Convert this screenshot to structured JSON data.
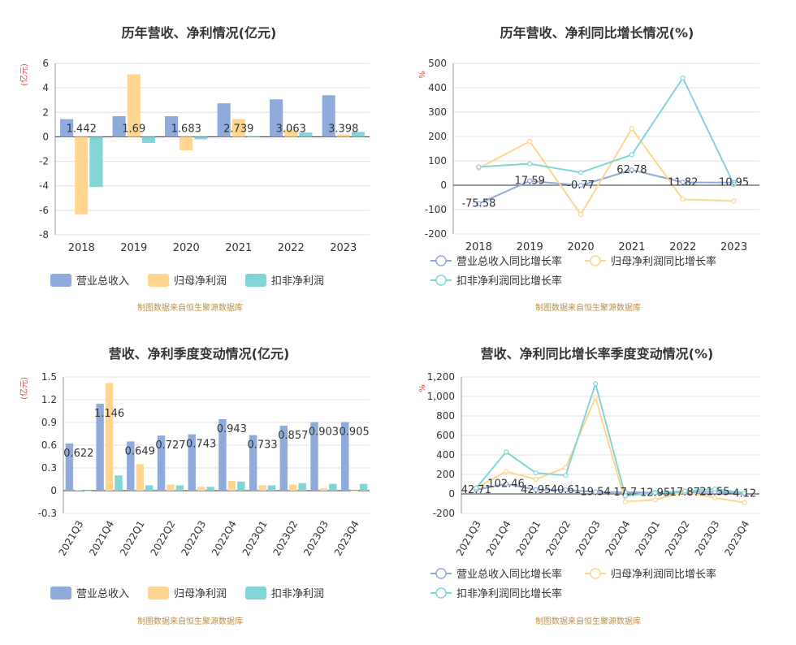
{
  "colors": {
    "revenue": "#8eabdc",
    "net_profit": "#ffd58f",
    "deducted_profit": "#82d5d6",
    "unit_label": "#e8443a",
    "source": "#b8904a",
    "axis": "#333333",
    "grid": "#e0e0e0",
    "label": "#333333"
  },
  "chart_data": [
    {
      "id": "annual_amount",
      "type": "bar",
      "title": "历年营收、净利情况(亿元)",
      "ylabel": "(亿元)",
      "categories": [
        "2018",
        "2019",
        "2020",
        "2021",
        "2022",
        "2023"
      ],
      "ylim": [
        -8,
        6
      ],
      "yticks": [
        -8,
        -6,
        -4,
        -2,
        0,
        2,
        4,
        6
      ],
      "ytick_labels": [
        "-8",
        "-6",
        "-4",
        "-2",
        "0",
        "2",
        "4",
        "6"
      ],
      "grid": true,
      "legend": "bottom",
      "series": [
        {
          "name": "营业总收入",
          "color_key": "revenue",
          "values": [
            1.442,
            1.69,
            1.683,
            2.739,
            3.063,
            3.398
          ],
          "labels": [
            "1.442",
            "1.69",
            "1.683",
            "2.739",
            "3.063",
            "3.398"
          ]
        },
        {
          "name": "归母净利润",
          "color_key": "net_profit",
          "values": [
            -6.35,
            5.1,
            -1.1,
            1.45,
            0.6,
            0.2
          ]
        },
        {
          "name": "扣非净利润",
          "color_key": "deducted_profit",
          "values": [
            -4.1,
            -0.5,
            -0.2,
            0.05,
            0.35,
            0.4
          ]
        }
      ],
      "source": "制图数据来自恒生聚源数据库"
    },
    {
      "id": "annual_growth",
      "type": "line",
      "title": "历年营收、净利同比增长情况(%)",
      "ylabel": "%",
      "categories": [
        "2018",
        "2019",
        "2020",
        "2021",
        "2022",
        "2023"
      ],
      "ylim": [
        -200,
        500
      ],
      "yticks": [
        -200,
        -100,
        0,
        100,
        200,
        300,
        400,
        500
      ],
      "ytick_labels": [
        "-200",
        "-100",
        "0",
        "100",
        "200",
        "300",
        "400",
        "500"
      ],
      "grid": true,
      "legend": "bottom",
      "series": [
        {
          "name": "营业总收入同比增长率",
          "color_key": "revenue",
          "values": [
            -75.58,
            17.59,
            -0.77,
            62.78,
            11.82,
            10.95
          ],
          "labels": [
            "-75.58",
            "17.59",
            "-0.77",
            "62.78",
            "11.82",
            "10.95"
          ]
        },
        {
          "name": "归母净利润同比增长率",
          "color_key": "net_profit",
          "values": [
            70,
            180,
            -120,
            232,
            -58,
            -65
          ]
        },
        {
          "name": "扣非净利润同比增长率",
          "color_key": "deducted_profit",
          "values": [
            75,
            88,
            52,
            125,
            440,
            3
          ]
        }
      ],
      "source": "制图数据来自恒生聚源数据库"
    },
    {
      "id": "quarterly_amount",
      "type": "bar",
      "title": "营收、净利季度变动情况(亿元)",
      "ylabel": "(亿元)",
      "categories": [
        "2021Q3",
        "2021Q4",
        "2022Q1",
        "2022Q2",
        "2022Q3",
        "2022Q4",
        "2023Q1",
        "2023Q2",
        "2023Q3",
        "2023Q4"
      ],
      "ylim": [
        -0.3,
        1.5
      ],
      "yticks": [
        -0.3,
        0,
        0.3,
        0.6,
        0.9,
        1.2,
        1.5
      ],
      "ytick_labels": [
        "-0.3",
        "0",
        "0.3",
        "0.6",
        "0.9",
        "1.2",
        "1.5"
      ],
      "grid": true,
      "legend": "bottom",
      "series": [
        {
          "name": "营业总收入",
          "color_key": "revenue",
          "values": [
            0.622,
            1.146,
            0.649,
            0.727,
            0.743,
            0.943,
            0.733,
            0.857,
            0.903,
            0.905
          ],
          "labels": [
            "0.622",
            "1.146",
            "0.649",
            "0.727",
            "0.743",
            "0.943",
            "0.733",
            "0.857",
            "0.903",
            "0.905"
          ]
        },
        {
          "name": "归母净利润",
          "color_key": "net_profit",
          "values": [
            0.01,
            1.42,
            0.35,
            0.08,
            0.05,
            0.13,
            0.07,
            0.08,
            0.03,
            0.0
          ]
        },
        {
          "name": "扣非净利润",
          "color_key": "deducted_profit",
          "values": [
            0.0,
            0.2,
            0.07,
            0.07,
            0.05,
            0.12,
            0.07,
            0.1,
            0.09,
            0.09
          ]
        }
      ],
      "source": "制图数据来自恒生聚源数据库"
    },
    {
      "id": "quarterly_growth",
      "type": "line",
      "title": "营收、净利同比增长率季度变动情况(%)",
      "ylabel": "%",
      "categories": [
        "2021Q3",
        "2021Q4",
        "2022Q1",
        "2022Q2",
        "2022Q3",
        "2022Q4",
        "2023Q1",
        "2023Q2",
        "2023Q3",
        "2023Q4"
      ],
      "ylim": [
        -200,
        1200
      ],
      "yticks": [
        -200,
        0,
        200,
        400,
        600,
        800,
        1000,
        1200
      ],
      "ytick_labels": [
        "-200",
        "0",
        "200",
        "400",
        "600",
        "800",
        "1,000",
        "1,200"
      ],
      "grid": true,
      "legend": "bottom",
      "series": [
        {
          "name": "营业总收入同比增长率",
          "color_key": "revenue",
          "values": [
            42.71,
            102.46,
            42.95,
            40.61,
            19.54,
            17.7,
            12.95,
            17.87,
            21.55,
            4.12
          ],
          "labels": [
            "42.71",
            "102.46",
            "42.95",
            "40.61",
            "19.54",
            "17.7",
            "12.95",
            "17.87",
            "21.55",
            "4.12"
          ]
        },
        {
          "name": "归母净利润同比增长率",
          "color_key": "net_profit",
          "values": [
            60,
            230,
            150,
            270,
            990,
            -80,
            -60,
            20,
            -40,
            -90
          ]
        },
        {
          "name": "扣非净利润同比增长率",
          "color_key": "deducted_profit",
          "values": [
            60,
            430,
            215,
            190,
            1130,
            -20,
            10,
            30,
            50,
            10
          ]
        }
      ],
      "source": "制图数据来自恒生聚源数据库"
    }
  ]
}
